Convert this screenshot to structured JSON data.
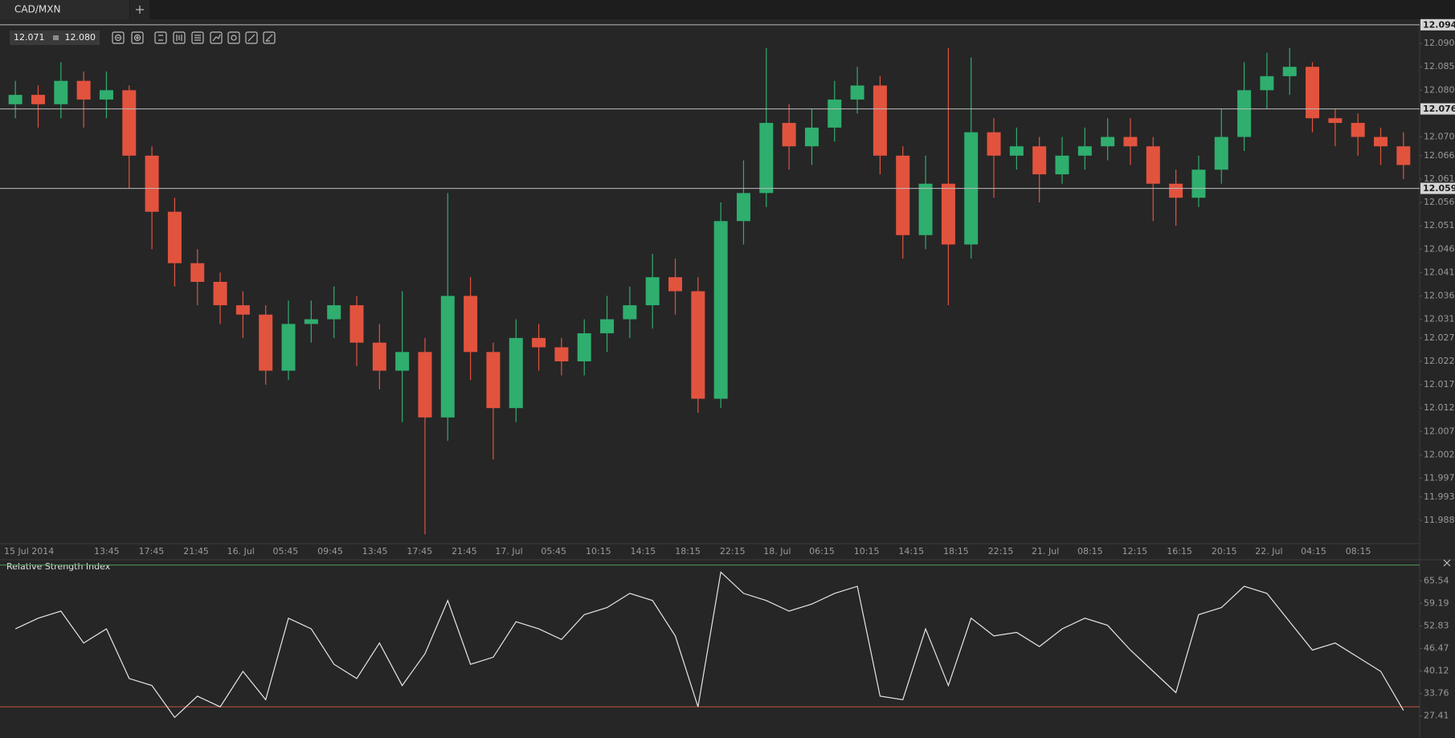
{
  "tab": {
    "label": "CAD/MXN"
  },
  "quote": {
    "bid": "12.071",
    "ask": "12.080"
  },
  "chart_data": [
    {
      "type": "candlestick",
      "xticks": [
        "15 Jul 2014",
        "13:45",
        "17:45",
        "21:45",
        "16. Jul",
        "05:45",
        "09:45",
        "13:45",
        "17:45",
        "21:45",
        "17. Jul",
        "05:45",
        "10:15",
        "14:15",
        "18:15",
        "22:15",
        "18. Jul",
        "06:15",
        "10:15",
        "14:15",
        "18:15",
        "22:15",
        "21. Jul",
        "08:15",
        "12:15",
        "16:15",
        "20:15",
        "22. Jul",
        "04:15",
        "08:15"
      ],
      "open": [
        12.077,
        12.079,
        12.077,
        12.082,
        12.078,
        12.08,
        12.066,
        12.054,
        12.043,
        12.039,
        12.034,
        12.032,
        12.02,
        12.03,
        12.031,
        12.034,
        12.026,
        12.02,
        12.024,
        12.01,
        12.036,
        12.024,
        12.012,
        12.027,
        12.025,
        12.022,
        12.028,
        12.031,
        12.034,
        12.04,
        12.037,
        12.014,
        12.052,
        12.058,
        12.073,
        12.068,
        12.072,
        12.078,
        12.081,
        12.066,
        12.049,
        12.06,
        12.047,
        12.071,
        12.066,
        12.068,
        12.062,
        12.066,
        12.068,
        12.07,
        12.068,
        12.06,
        12.057,
        12.063,
        12.07,
        12.08,
        12.083,
        12.085,
        12.074,
        12.073,
        12.07,
        12.068
      ],
      "high": [
        12.082,
        12.081,
        12.086,
        12.084,
        12.084,
        12.081,
        12.068,
        12.057,
        12.046,
        12.041,
        12.037,
        12.034,
        12.035,
        12.035,
        12.038,
        12.036,
        12.03,
        12.037,
        12.027,
        12.058,
        12.04,
        12.026,
        12.031,
        12.03,
        12.027,
        12.031,
        12.036,
        12.038,
        12.045,
        12.044,
        12.04,
        12.056,
        12.065,
        12.089,
        12.077,
        12.076,
        12.082,
        12.085,
        12.083,
        12.068,
        12.066,
        12.089,
        12.087,
        12.074,
        12.072,
        12.07,
        12.07,
        12.072,
        12.074,
        12.074,
        12.07,
        12.063,
        12.066,
        12.076,
        12.086,
        12.088,
        12.089,
        12.086,
        12.076,
        12.075,
        12.072,
        12.071
      ],
      "low": [
        12.074,
        12.072,
        12.074,
        12.072,
        12.074,
        12.059,
        12.046,
        12.038,
        12.034,
        12.03,
        12.027,
        12.017,
        12.018,
        12.026,
        12.027,
        12.021,
        12.016,
        12.009,
        11.985,
        12.005,
        12.018,
        12.001,
        12.009,
        12.02,
        12.019,
        12.019,
        12.024,
        12.027,
        12.029,
        12.032,
        12.011,
        12.012,
        12.047,
        12.055,
        12.063,
        12.064,
        12.069,
        12.075,
        12.062,
        12.044,
        12.046,
        12.034,
        12.044,
        12.057,
        12.063,
        12.056,
        12.06,
        12.063,
        12.065,
        12.064,
        12.052,
        12.051,
        12.055,
        12.06,
        12.067,
        12.076,
        12.079,
        12.071,
        12.068,
        12.066,
        12.064,
        12.061
      ],
      "close": [
        12.079,
        12.077,
        12.082,
        12.078,
        12.08,
        12.066,
        12.054,
        12.043,
        12.039,
        12.034,
        12.032,
        12.02,
        12.03,
        12.031,
        12.034,
        12.026,
        12.02,
        12.024,
        12.01,
        12.036,
        12.024,
        12.012,
        12.027,
        12.025,
        12.022,
        12.028,
        12.031,
        12.034,
        12.04,
        12.037,
        12.014,
        12.052,
        12.058,
        12.073,
        12.068,
        12.072,
        12.078,
        12.081,
        12.066,
        12.049,
        12.06,
        12.047,
        12.071,
        12.066,
        12.068,
        12.062,
        12.066,
        12.068,
        12.07,
        12.068,
        12.06,
        12.057,
        12.063,
        12.07,
        12.08,
        12.083,
        12.085,
        12.074,
        12.073,
        12.07,
        12.068,
        12.064
      ],
      "up_color": "#2fae6e",
      "down_color": "#e2533e",
      "ylim": [
        11.983,
        12.095
      ],
      "yticks": [
        {
          "value": 12.09,
          "label": "12.090"
        },
        12.085,
        {
          "value": 12.08,
          "label": "12.080"
        },
        {
          "value": 12.07,
          "label": "12.070"
        },
        12.066,
        12.061,
        12.056,
        12.051,
        12.046,
        12.041,
        12.036,
        12.031,
        12.027,
        12.022,
        12.017,
        12.012,
        12.007,
        12.002,
        11.997,
        11.993,
        11.988
      ],
      "price_lines": [
        12.094,
        12.076,
        12.059
      ]
    },
    {
      "type": "line",
      "title": "Relative Strength Index",
      "values": [
        52,
        55,
        57,
        48,
        52,
        38,
        36,
        27,
        33,
        30,
        40,
        32,
        55,
        52,
        42,
        38,
        48,
        36,
        45,
        60,
        42,
        44,
        54,
        52,
        49,
        56,
        58,
        62,
        60,
        50,
        30,
        68,
        62,
        60,
        57,
        59,
        62,
        64,
        33,
        32,
        52,
        36,
        55,
        50,
        51,
        47,
        52,
        55,
        53,
        46,
        40,
        34,
        56,
        58,
        64,
        62,
        54,
        46,
        48,
        44,
        40,
        29
      ],
      "color": "#e6e6e6",
      "ylim": [
        21.2,
        71.5
      ],
      "yticks": [
        65.54,
        59.19,
        52.83,
        46.47,
        40.12,
        33.76,
        27.41
      ],
      "levels": [
        {
          "value": 70,
          "color": "#4f9a5c"
        },
        {
          "value": 30,
          "color": "#c4553c"
        }
      ]
    }
  ]
}
